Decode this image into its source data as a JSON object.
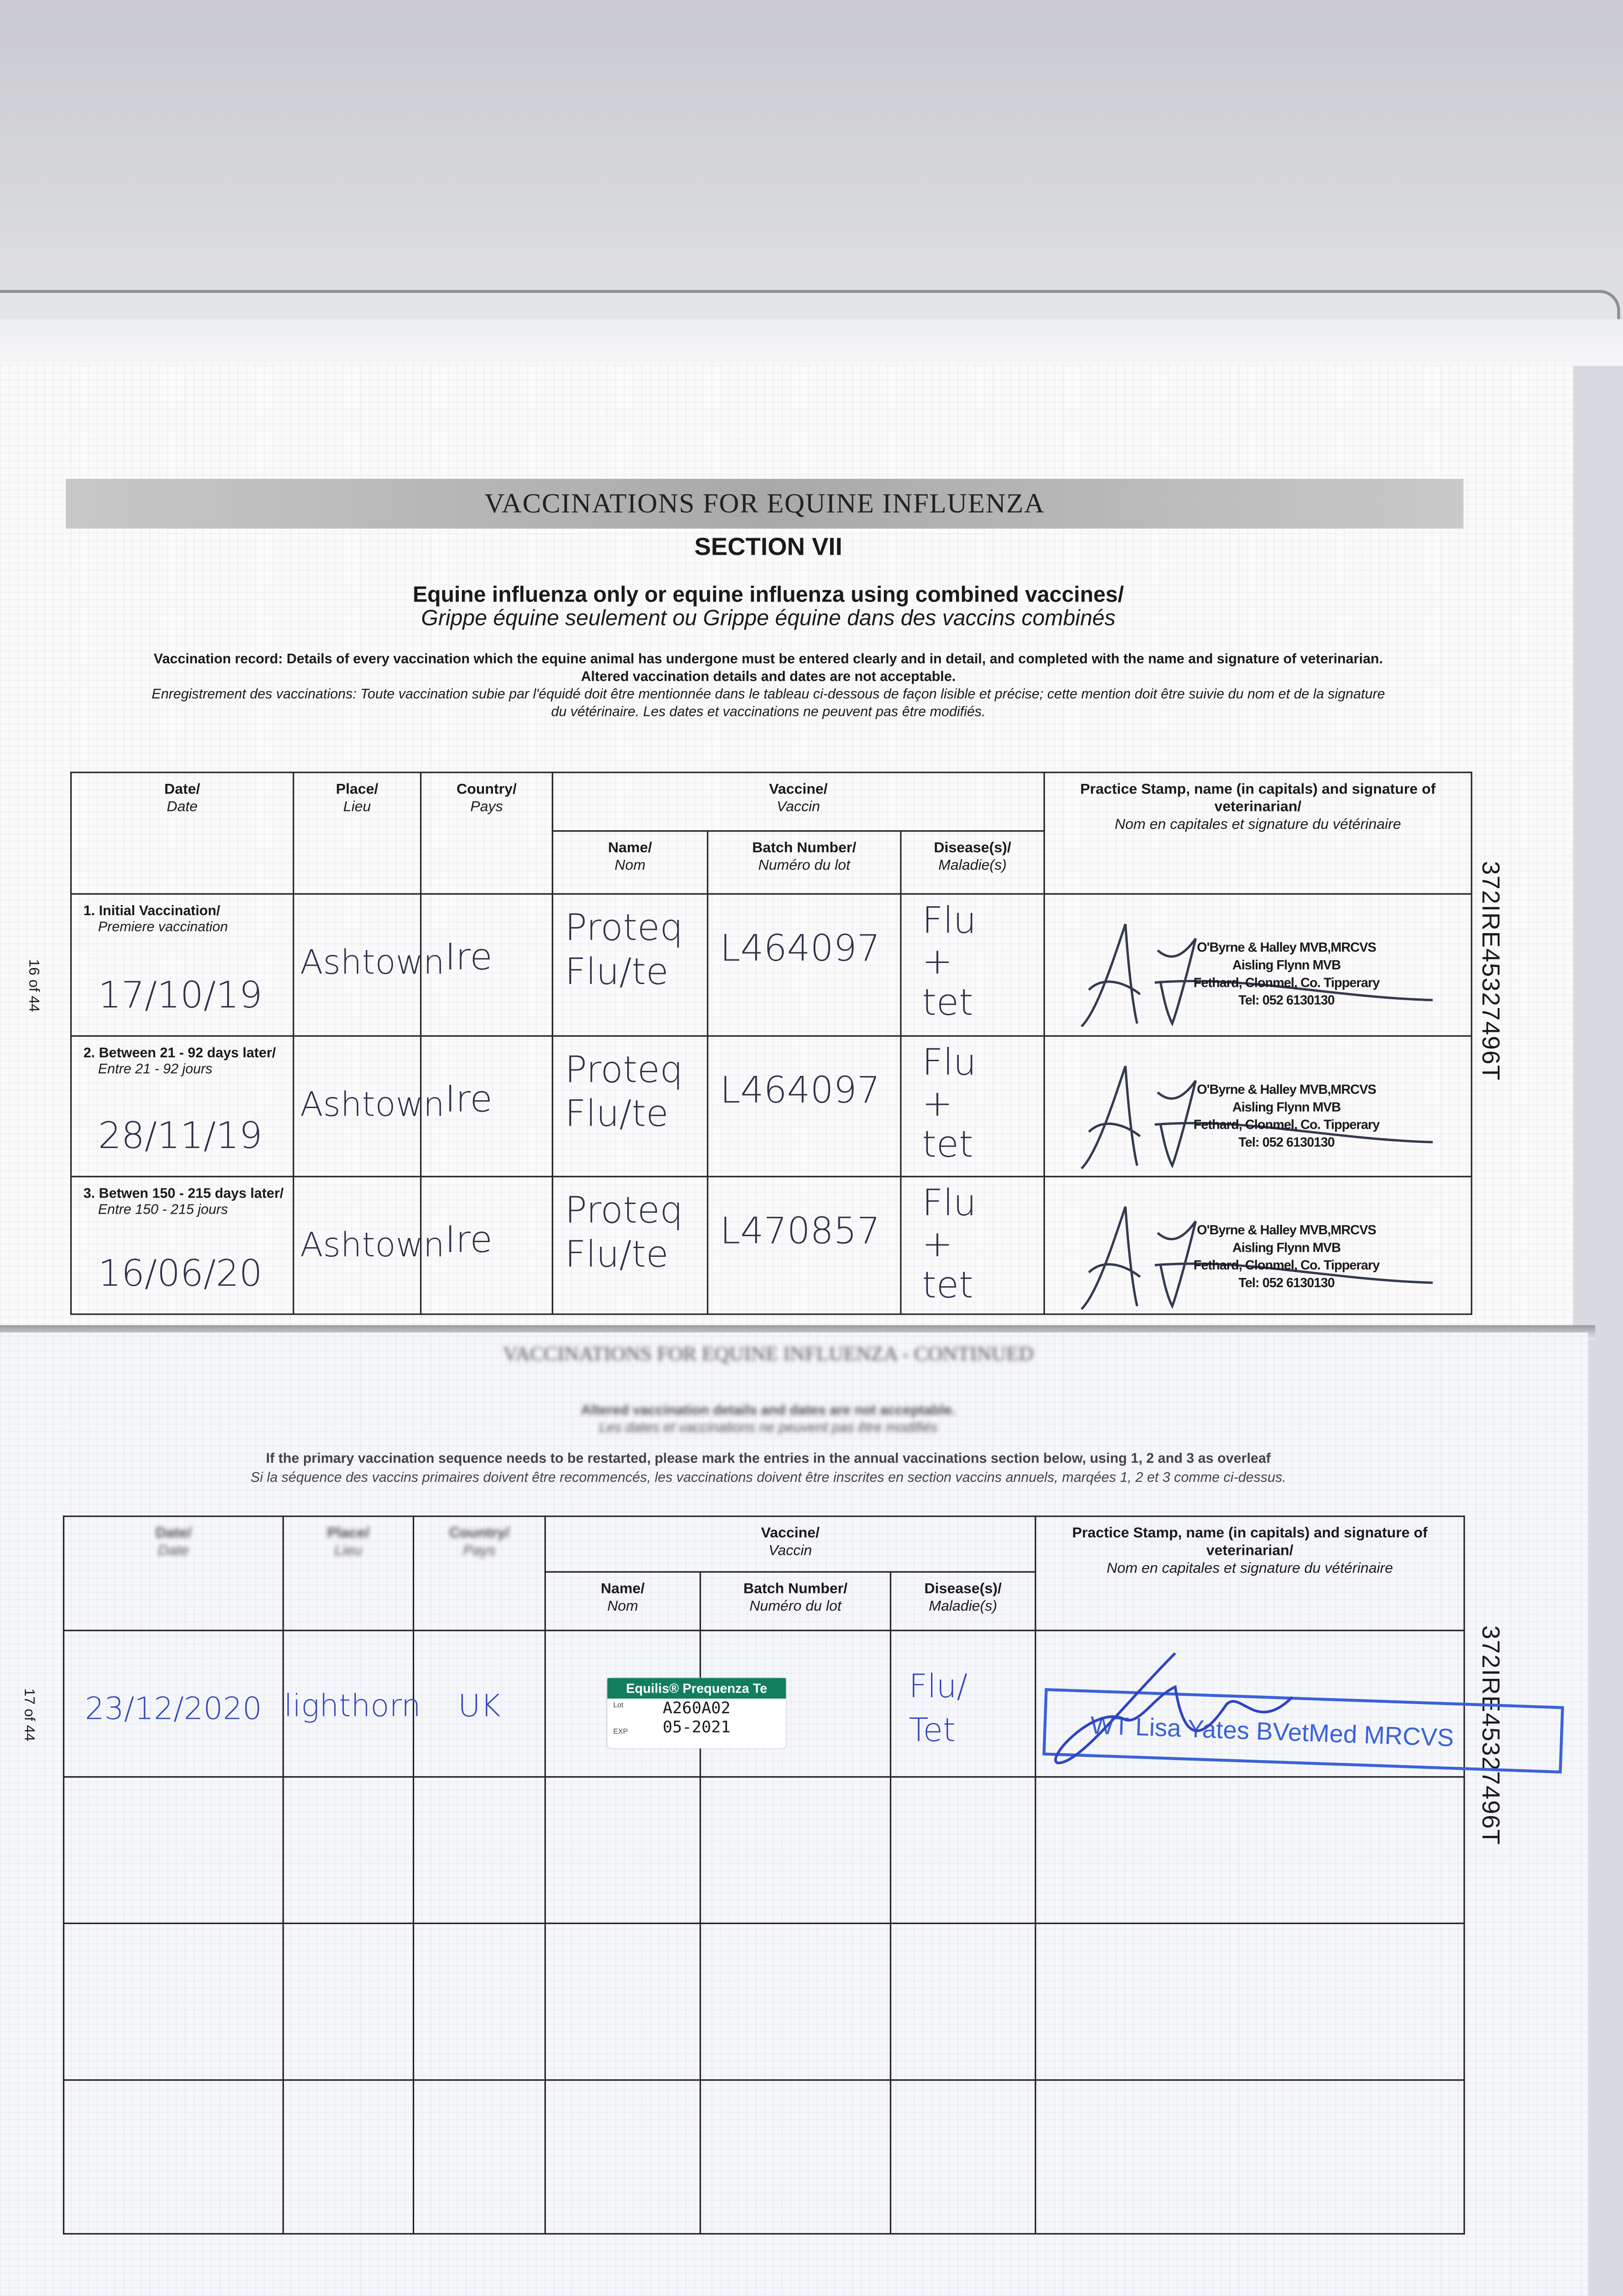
{
  "page1": {
    "banner_title": "VACCINATIONS FOR EQUINE INFLUENZA",
    "section": "SECTION VII",
    "subtitle_en": "Equine influenza only or equine influenza using combined vaccines/",
    "subtitle_fr": "Grippe équine seulement ou Grippe équine dans des vaccins combinés",
    "instruction_en_1": "Vaccination record: Details of every vaccination which the equine animal has undergone must be entered clearly and in detail, and completed with the name and signature of veterinarian.",
    "instruction_en_2": "Altered vaccination details and dates are not acceptable.",
    "instruction_fr_1": "Enregistrement des vaccinations: Toute vaccination subie par l'équidé doit être mentionnée dans le tableau ci-dessous de façon lisible et précise; cette mention doit être suivie du nom et de la signature",
    "instruction_fr_2": "du vétérinaire. Les dates et vaccinations ne peuvent pas être modifiés.",
    "page_number": "16 of 44",
    "passport_id": "372IRE45327496T"
  },
  "headers": {
    "date": "Date/",
    "date_fr": "Date",
    "place": "Place/",
    "place_fr": "Lieu",
    "country": "Country/",
    "country_fr": "Pays",
    "vaccine": "Vaccine/",
    "vaccine_fr": "Vaccin",
    "name": "Name/",
    "name_fr": "Nom",
    "batch": "Batch Number/",
    "batch_fr": "Numéro du lot",
    "disease": "Disease(s)/",
    "disease_fr": "Maladie(s)",
    "stamp": "Practice Stamp, name (in capitals) and signature of veterinarian/",
    "stamp_fr": "Nom en capitales et signature du vétérinaire"
  },
  "primary_rows": [
    {
      "label": "1. Initial Vaccination/",
      "label_fr": "Premiere vaccination",
      "date": "17/10/19",
      "place": "Ashtown",
      "country": "Ire",
      "name": "Proteq Flu/te",
      "batch": "L464097",
      "disease": "Flu + tet"
    },
    {
      "label": "2. Between 21 - 92 days later/",
      "label_fr": "Entre 21 - 92 jours",
      "date": "28/11/19",
      "place": "Ashtown",
      "country": "Ire",
      "name": "Proteq Flu/te",
      "batch": "L464097",
      "disease": "Flu + tet"
    },
    {
      "label": "3. Betwen 150 - 215 days later/",
      "label_fr": "Entre 150 - 215 jours",
      "date": "16/06/20",
      "place": "Ashtown",
      "country": "Ire",
      "name": "Proteq Flu/te",
      "batch": "L470857",
      "disease": "Flu + tet"
    }
  ],
  "vet_stamp": {
    "line1": "O'Byrne & Halley MVB,MRCVS",
    "line2": "Aisling Flynn MVB",
    "line3": "Fethard, Clonmel, Co. Tipperary",
    "line4": "Tel: 052 6130130"
  },
  "page2": {
    "blurred_title": "VACCINATIONS FOR EQUINE INFLUENZA - CONTINUED",
    "blurred_line1": "Altered vaccination details and dates are not acceptable.",
    "blurred_line2": "Les dates et vaccinations ne peuvent pas être modifiés",
    "note_en": "If the primary vaccination sequence needs to be restarted, please mark the entries in the annual vaccinations section below, using 1, 2 and 3 as overleaf",
    "note_fr": "Si la séquence des vaccins primaires doivent être recommencés, les vaccinations doivent être inscrites en section vaccins annuels, marqées 1, 2 et 3 comme ci-dessus.",
    "page_number": "17 of 44",
    "passport_id": "372IRE45327496T",
    "rows": [
      {
        "date": "23/12/2020",
        "place": "lighthorn",
        "country": "UK",
        "disease": "Flu/ Tet",
        "label": {
          "product": "Equilis® Prequenza Te",
          "lot_label": "Lot",
          "lot": "A260A02",
          "exp_label": "EXP",
          "exp": "05-2021"
        },
        "stamp": "WT  Lisa Yates BVetMed MRCVS"
      },
      {},
      {},
      {}
    ]
  },
  "colors": {
    "label_green": "#127e5e",
    "stamp_blue": "#3a62d8",
    "ink_blue": "#3446b8",
    "banner_gray": "#b5b5b5"
  }
}
